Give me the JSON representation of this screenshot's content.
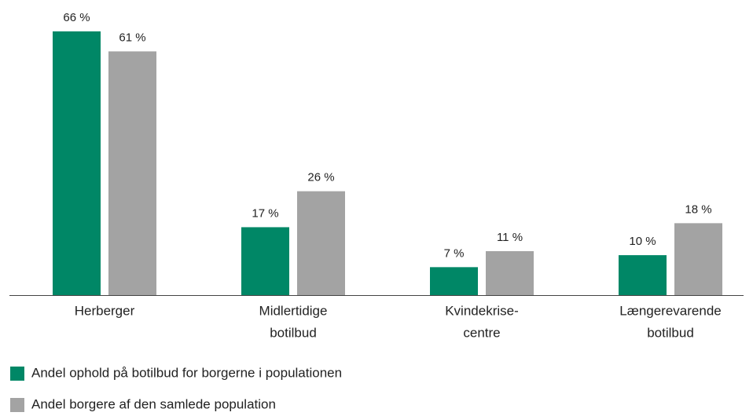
{
  "chart_data": {
    "type": "bar",
    "categories": [
      [
        "Herberger"
      ],
      [
        "Midlertidige",
        "botilbud"
      ],
      [
        "Kvindekrise-",
        "centre"
      ],
      [
        "Længerevarende",
        "botilbud"
      ]
    ],
    "series": [
      {
        "name": "Andel ophold på botilbud for borgerne i populationen",
        "color": "#008766",
        "values": [
          66,
          17,
          7,
          10
        ],
        "value_labels": [
          "66 %",
          "17 %",
          "7 %",
          "10 %"
        ]
      },
      {
        "name": "Andel borgere af den samlede population",
        "color": "#a3a3a3",
        "values": [
          61,
          26,
          11,
          18
        ],
        "value_labels": [
          "61 %",
          "26 %",
          "11 %",
          "18 %"
        ]
      }
    ]
  }
}
